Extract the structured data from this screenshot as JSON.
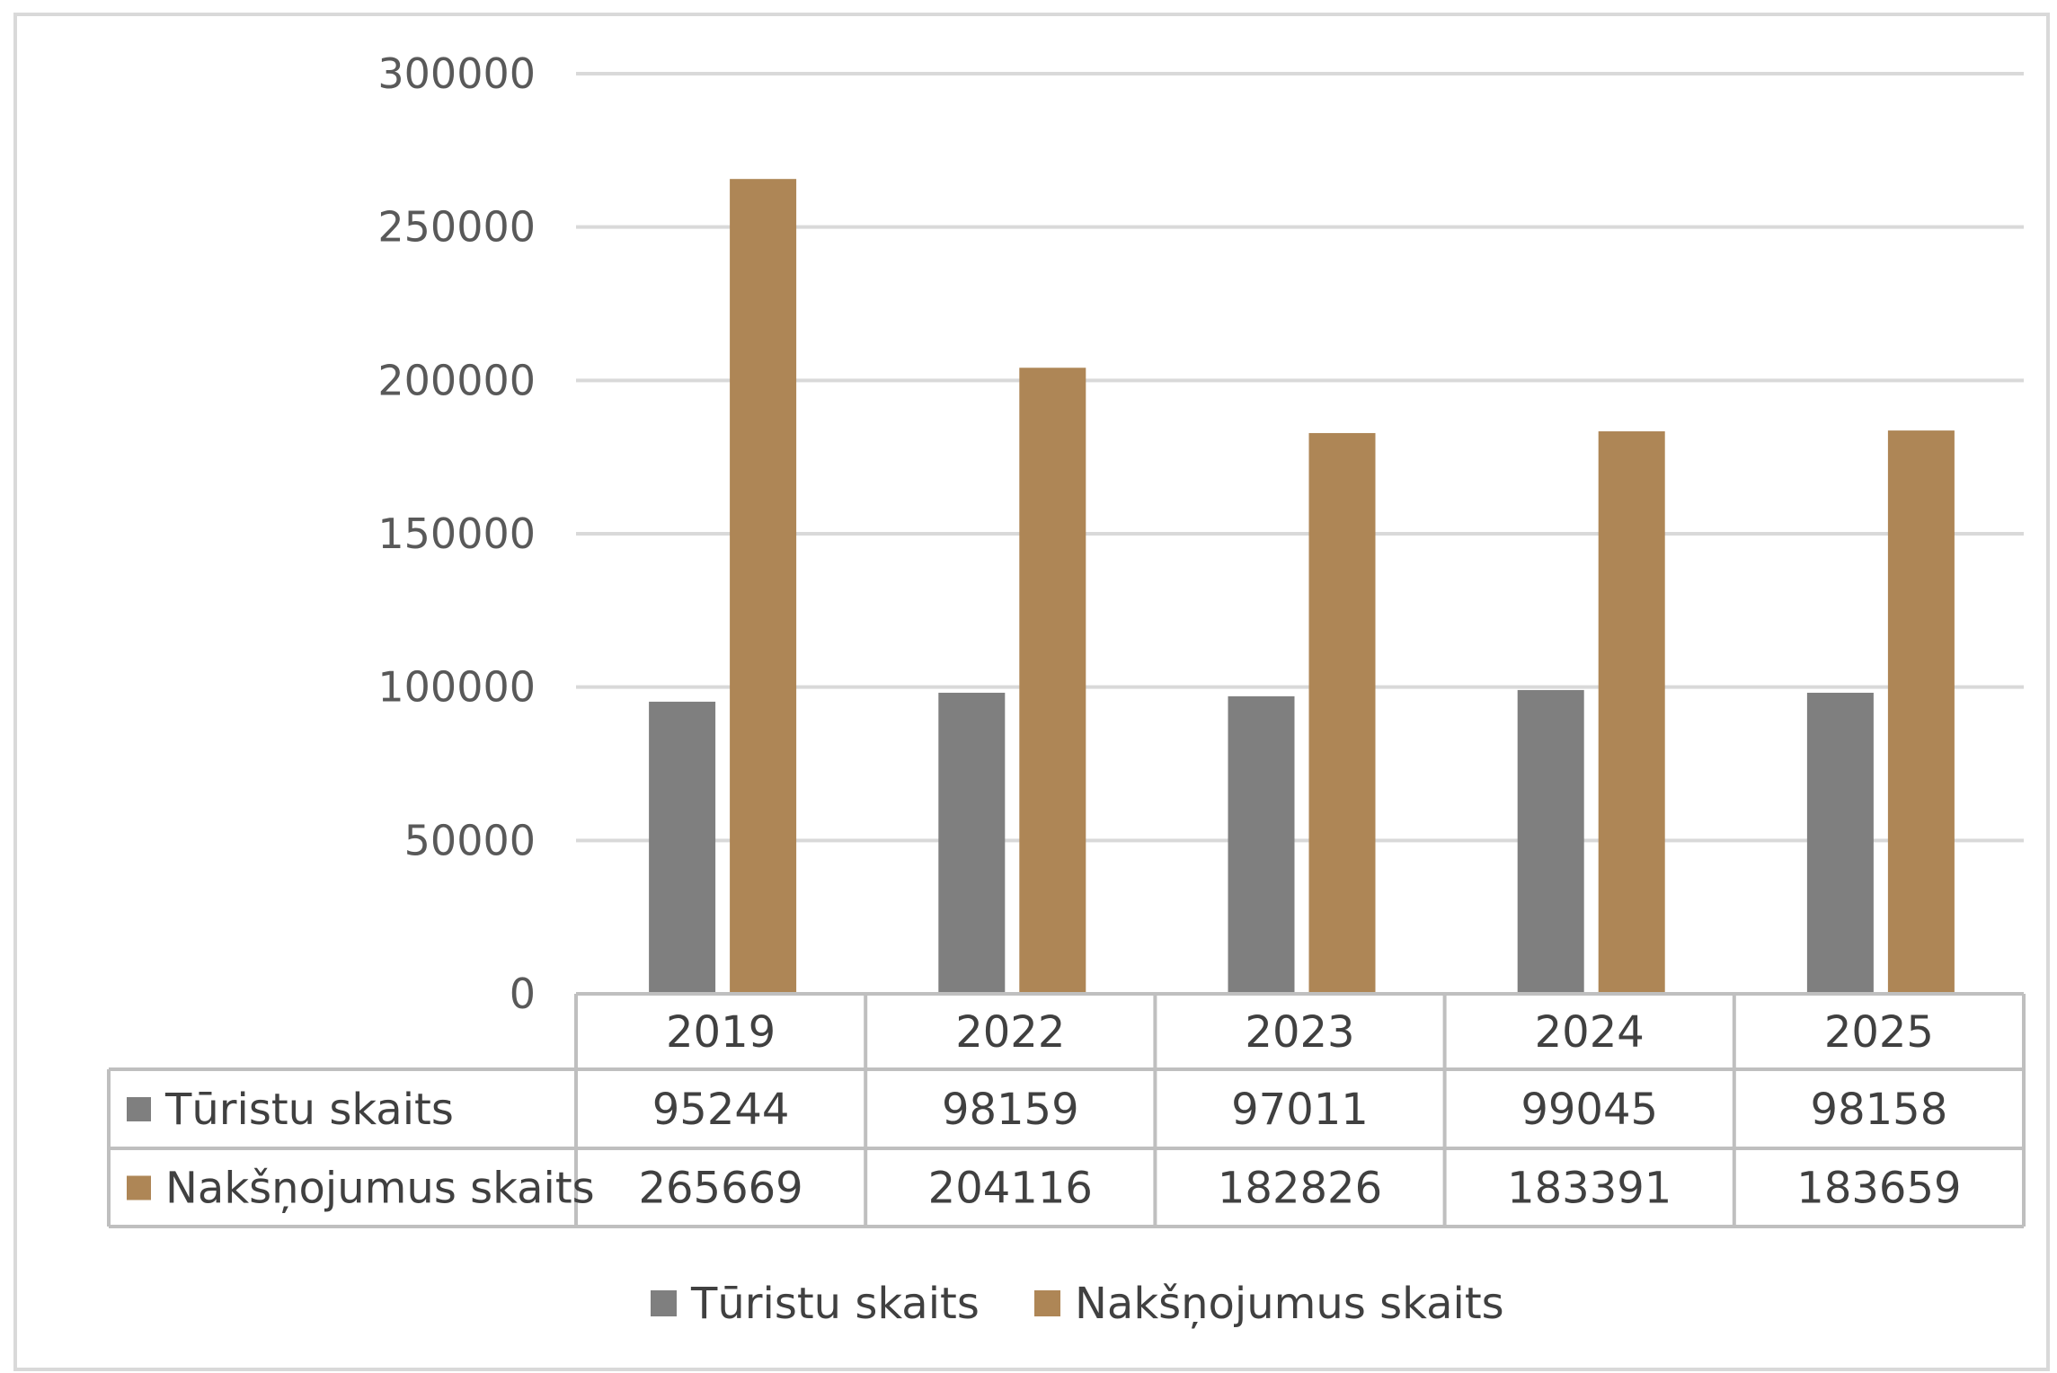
{
  "chart_data": {
    "type": "bar",
    "categories": [
      "2019",
      "2022",
      "2023",
      "2024",
      "2025"
    ],
    "series": [
      {
        "name": "Tūristu skaits",
        "values": [
          95244,
          98159,
          97011,
          99045,
          98158
        ],
        "color": "#7f7f7f"
      },
      {
        "name": "Nakšņojumus skaits",
        "values": [
          265669,
          204116,
          182826,
          183391,
          183659
        ],
        "color": "#ae8656"
      }
    ],
    "ylim": [
      0,
      300000
    ],
    "yticks": [
      "0",
      "50000",
      "100000",
      "150000",
      "200000",
      "250000",
      "300000"
    ],
    "grid": true,
    "data_table": true,
    "legend": "bottom",
    "gridline_color": "#d9d9d9",
    "border_color": "#d9d9d9",
    "table_border_color": "#bfbfbf"
  }
}
